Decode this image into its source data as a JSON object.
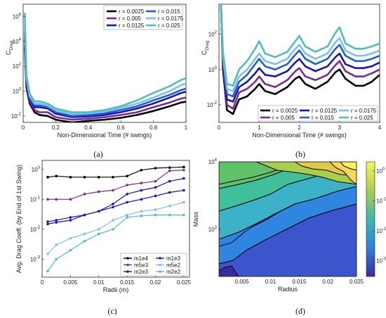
{
  "colors": {
    "r_series": [
      "#000000",
      "#7a2b8f",
      "#1a14b4",
      "#1f5fd6",
      "#7fbfe8",
      "#4fbfb7"
    ],
    "mass_series": [
      "#000000",
      "#1a14b4",
      "#7a2b8f",
      "#7fbfe8",
      "#1a14b4",
      "#4fbfb7"
    ],
    "contour_fill_low": "#3a2aa0",
    "contour_fill_high": "#f7f55a"
  },
  "chart_data": [
    {
      "id": "a",
      "type": "line",
      "caption": "(a)",
      "xlabel": "Non-Dimensional Time (# swings)",
      "ylabel": "C",
      "ylabel_sub": "Drag",
      "yscale": "log",
      "xlim": [
        0,
        1
      ],
      "ylim": [
        0.003,
        10000000
      ],
      "xticks": [
        "0",
        "0.2",
        "0.4",
        "0.6",
        "0.8",
        "1"
      ],
      "xtick_values": [
        0,
        0.2,
        0.4,
        0.6,
        0.8,
        1
      ],
      "yticks": [
        "10",
        "10",
        "10",
        "10",
        "10"
      ],
      "ytick_exps": [
        "-2",
        "0",
        "2",
        "4",
        "6"
      ],
      "ytick_values": [
        0.01,
        1,
        100,
        10000,
        1000000
      ],
      "legend_position": "top-right",
      "series": [
        {
          "name": "r = 0.0025",
          "x": [
            0.01,
            0.02,
            0.04,
            0.07,
            0.1,
            0.15,
            0.2,
            0.3,
            0.4,
            0.5,
            0.6,
            0.7,
            0.8,
            0.9,
            0.97,
            1.0
          ],
          "y": [
            3000,
            2,
            0.1,
            0.02,
            0.012,
            0.01,
            0.005,
            0.003,
            0.004,
            0.005,
            0.007,
            0.012,
            0.025,
            0.06,
            0.12,
            0.14
          ]
        },
        {
          "name": "r = 0.005",
          "x": [
            0.01,
            0.02,
            0.04,
            0.07,
            0.1,
            0.15,
            0.2,
            0.3,
            0.4,
            0.5,
            0.6,
            0.7,
            0.8,
            0.9,
            0.97,
            1.0
          ],
          "y": [
            5000,
            3,
            0.15,
            0.03,
            0.02,
            0.02,
            0.008,
            0.005,
            0.006,
            0.008,
            0.012,
            0.02,
            0.05,
            0.12,
            0.25,
            0.3
          ]
        },
        {
          "name": "r = 0.0125",
          "x": [
            0.01,
            0.02,
            0.04,
            0.07,
            0.1,
            0.15,
            0.2,
            0.3,
            0.4,
            0.5,
            0.6,
            0.7,
            0.8,
            0.9,
            0.97,
            1.0
          ],
          "y": [
            20000,
            5,
            0.25,
            0.05,
            0.05,
            0.04,
            0.015,
            0.008,
            0.009,
            0.012,
            0.02,
            0.04,
            0.1,
            0.3,
            0.7,
            0.9
          ]
        },
        {
          "name": "r = 0.015",
          "x": [
            0.01,
            0.02,
            0.04,
            0.07,
            0.1,
            0.15,
            0.2,
            0.3,
            0.4,
            0.5,
            0.6,
            0.7,
            0.8,
            0.9,
            0.97,
            1.0
          ],
          "y": [
            50000,
            8,
            0.3,
            0.07,
            0.07,
            0.05,
            0.02,
            0.01,
            0.012,
            0.016,
            0.03,
            0.06,
            0.18,
            0.5,
            1.2,
            1.6
          ]
        },
        {
          "name": "r = 0.0175",
          "x": [
            0.01,
            0.02,
            0.04,
            0.07,
            0.1,
            0.15,
            0.2,
            0.3,
            0.4,
            0.5,
            0.6,
            0.7,
            0.8,
            0.9,
            0.97,
            1.0
          ],
          "y": [
            200000,
            12,
            0.4,
            0.1,
            0.1,
            0.07,
            0.03,
            0.015,
            0.016,
            0.022,
            0.045,
            0.1,
            0.3,
            1.0,
            3,
            4
          ]
        },
        {
          "name": "r = 0.025",
          "x": [
            0.01,
            0.02,
            0.04,
            0.07,
            0.1,
            0.15,
            0.2,
            0.3,
            0.4,
            0.5,
            0.6,
            0.7,
            0.8,
            0.9,
            0.97,
            1.0
          ],
          "y": [
            2000000,
            20,
            0.6,
            0.15,
            0.15,
            0.1,
            0.04,
            0.02,
            0.02,
            0.03,
            0.06,
            0.18,
            0.7,
            2.5,
            8,
            11
          ]
        }
      ]
    },
    {
      "id": "b",
      "type": "line",
      "caption": "(b)",
      "xlabel": "Non-Dimensional Time (# swings)",
      "ylabel": "C",
      "ylabel_sub": "Drag",
      "yscale": "log",
      "xlim": [
        0,
        4
      ],
      "ylim": [
        0.001,
        5000
      ],
      "xticks": [
        "0",
        "1",
        "2",
        "3",
        "4"
      ],
      "xtick_values": [
        0,
        1,
        2,
        3,
        4
      ],
      "yticks": [
        "10",
        "10",
        "10"
      ],
      "ytick_exps": [
        "-2",
        "0",
        "2"
      ],
      "ytick_values": [
        0.01,
        1,
        100
      ],
      "legend_position": "bottom",
      "series": [
        {
          "name": "r = 0.0025",
          "x": [
            0.05,
            0.1,
            0.2,
            0.35,
            0.5,
            0.7,
            0.9,
            1.0,
            1.15,
            1.4,
            1.7,
            1.9,
            2.0,
            2.15,
            2.4,
            2.7,
            2.9,
            3.0,
            3.15,
            3.4,
            3.6,
            3.8,
            4.0
          ],
          "y": [
            5000,
            1,
            0.005,
            0.003,
            0.02,
            0.03,
            0.08,
            0.15,
            0.06,
            0.04,
            0.1,
            0.3,
            0.4,
            0.15,
            0.08,
            0.2,
            0.7,
            1.0,
            0.3,
            0.12,
            0.12,
            0.2,
            0.5
          ]
        },
        {
          "name": "r = 0.005",
          "x": [
            0.05,
            0.1,
            0.2,
            0.35,
            0.5,
            0.7,
            0.9,
            1.0,
            1.15,
            1.4,
            1.7,
            1.9,
            2.0,
            2.15,
            2.4,
            2.7,
            2.9,
            3.0,
            3.15,
            3.4,
            3.6,
            3.8,
            4.0
          ],
          "y": [
            5000,
            2,
            0.01,
            0.006,
            0.05,
            0.08,
            0.2,
            0.4,
            0.15,
            0.1,
            0.25,
            0.8,
            1.2,
            0.4,
            0.25,
            0.5,
            1.8,
            3.0,
            0.8,
            0.4,
            0.4,
            0.6,
            1.0
          ]
        },
        {
          "name": "r = 0.0125",
          "x": [
            0.05,
            0.1,
            0.2,
            0.35,
            0.5,
            0.7,
            0.9,
            1.0,
            1.15,
            1.4,
            1.7,
            1.9,
            2.0,
            2.15,
            2.4,
            2.7,
            2.9,
            3.0,
            3.15,
            3.4,
            3.6,
            3.8,
            4.0
          ],
          "y": [
            5000,
            3,
            0.02,
            0.015,
            0.1,
            0.2,
            0.6,
            1.2,
            0.5,
            0.4,
            0.8,
            2.5,
            4,
            1.5,
            0.8,
            1.5,
            5,
            8,
            2,
            1.2,
            1.2,
            1.5,
            2.5
          ]
        },
        {
          "name": "r = 0.015",
          "x": [
            0.05,
            0.1,
            0.2,
            0.35,
            0.5,
            0.7,
            0.9,
            1.0,
            1.15,
            1.4,
            1.7,
            1.9,
            2.0,
            2.15,
            2.4,
            2.7,
            2.9,
            3.0,
            3.15,
            3.4,
            3.6,
            3.8,
            4.0
          ],
          "y": [
            5000,
            4,
            0.04,
            0.03,
            0.2,
            0.5,
            2,
            4,
            1.5,
            1.0,
            2,
            7,
            12,
            4,
            2,
            4,
            15,
            25,
            6,
            3,
            3,
            4,
            6
          ]
        },
        {
          "name": "r = 0.0175",
          "x": [
            0.05,
            0.1,
            0.2,
            0.35,
            0.5,
            0.7,
            0.9,
            1.0,
            1.15,
            1.4,
            1.7,
            1.9,
            2.0,
            2.15,
            2.4,
            2.7,
            2.9,
            3.0,
            3.15,
            3.4,
            3.6,
            3.8,
            4.0
          ],
          "y": [
            5000,
            6,
            0.08,
            0.06,
            0.4,
            1.0,
            4,
            8,
            3,
            2,
            4,
            15,
            25,
            8,
            4,
            8,
            35,
            60,
            12,
            6,
            6,
            8,
            12
          ]
        },
        {
          "name": "r = 0.025",
          "x": [
            0.05,
            0.1,
            0.2,
            0.35,
            0.5,
            0.7,
            0.9,
            1.0,
            1.15,
            1.4,
            1.7,
            1.9,
            2.0,
            2.15,
            2.4,
            2.7,
            2.9,
            3.0,
            3.15,
            3.4,
            3.6,
            3.8,
            4.0
          ],
          "y": [
            5000,
            10,
            0.15,
            0.12,
            1.0,
            3,
            15,
            40,
            8,
            5,
            10,
            40,
            80,
            20,
            10,
            20,
            120,
            250,
            30,
            15,
            15,
            20,
            30
          ]
        }
      ]
    },
    {
      "id": "c",
      "type": "line",
      "caption": "(c)",
      "xlabel": "Radii (m)",
      "ylabel": "Avg. Drag Coeff. (by End of 1st Swing)",
      "yscale": "log",
      "xlim": [
        0,
        0.026
      ],
      "ylim": [
        0.00025,
        2
      ],
      "xticks": [
        "0",
        "0.005",
        "0.01",
        "0.015",
        "0.02",
        "0.025"
      ],
      "xtick_values": [
        0,
        0.005,
        0.01,
        0.015,
        0.02,
        0.025
      ],
      "yticks": [
        "10",
        "10",
        "10",
        "10"
      ],
      "ytick_exps": [
        "-3",
        "-2",
        "-1",
        "0"
      ],
      "ytick_values": [
        0.001,
        0.01,
        0.1,
        1
      ],
      "legend_position": "bottom-right",
      "x": [
        0.001,
        0.0025,
        0.005,
        0.0075,
        0.01,
        0.0125,
        0.015,
        0.0175,
        0.02,
        0.0225,
        0.025
      ],
      "series": [
        {
          "name": "m1e4",
          "y": [
            0.55,
            0.6,
            0.55,
            0.55,
            0.55,
            0.55,
            0.6,
            0.95,
            1.1,
            1.15,
            1.2
          ]
        },
        {
          "name": "m1e3",
          "y": [
            0.018,
            0.02,
            0.025,
            0.03,
            0.04,
            0.055,
            0.08,
            0.1,
            0.13,
            0.17,
            0.2
          ]
        },
        {
          "name": "m5e3",
          "y": [
            0.1,
            0.1,
            0.1,
            0.15,
            0.18,
            0.2,
            0.3,
            0.35,
            0.4,
            0.9,
            0.95
          ]
        },
        {
          "name": "m5e2",
          "y": [
            0.0015,
            0.003,
            0.005,
            0.007,
            0.01,
            0.02,
            0.03,
            0.04,
            0.045,
            0.06,
            0.08
          ]
        },
        {
          "name": "m2e3",
          "y": [
            0.015,
            0.017,
            0.02,
            0.03,
            0.04,
            0.07,
            0.15,
            0.2,
            0.25,
            0.4,
            0.5
          ]
        },
        {
          "name": "m2e2",
          "y": [
            0.0004,
            0.001,
            0.002,
            0.004,
            0.007,
            0.01,
            0.025,
            0.028,
            0.03,
            0.03,
            0.03
          ]
        }
      ]
    },
    {
      "id": "d",
      "type": "heatmap",
      "caption": "(d)",
      "xlabel": "Radius",
      "ylabel": "Mass",
      "yscale": "log",
      "xlim": [
        0.001,
        0.025
      ],
      "ylim": [
        200,
        10000
      ],
      "xticks": [
        "0.005",
        "0.01",
        "0.015",
        "0.02",
        "0.025"
      ],
      "xtick_values": [
        0.005,
        0.01,
        0.015,
        0.02,
        0.025
      ],
      "yticks": [
        "10",
        "10"
      ],
      "ytick_exps": [
        "3",
        "4"
      ],
      "ytick_values": [
        1000,
        10000
      ],
      "colorbar_ticks": [
        "10",
        "10",
        "10",
        "10"
      ],
      "colorbar_exps": [
        "0",
        "-1",
        "-2",
        "-3"
      ],
      "colorbar_values": [
        1,
        0.1,
        0.01,
        0.001
      ],
      "colorbar_range": [
        0.0003,
        2
      ]
    }
  ]
}
